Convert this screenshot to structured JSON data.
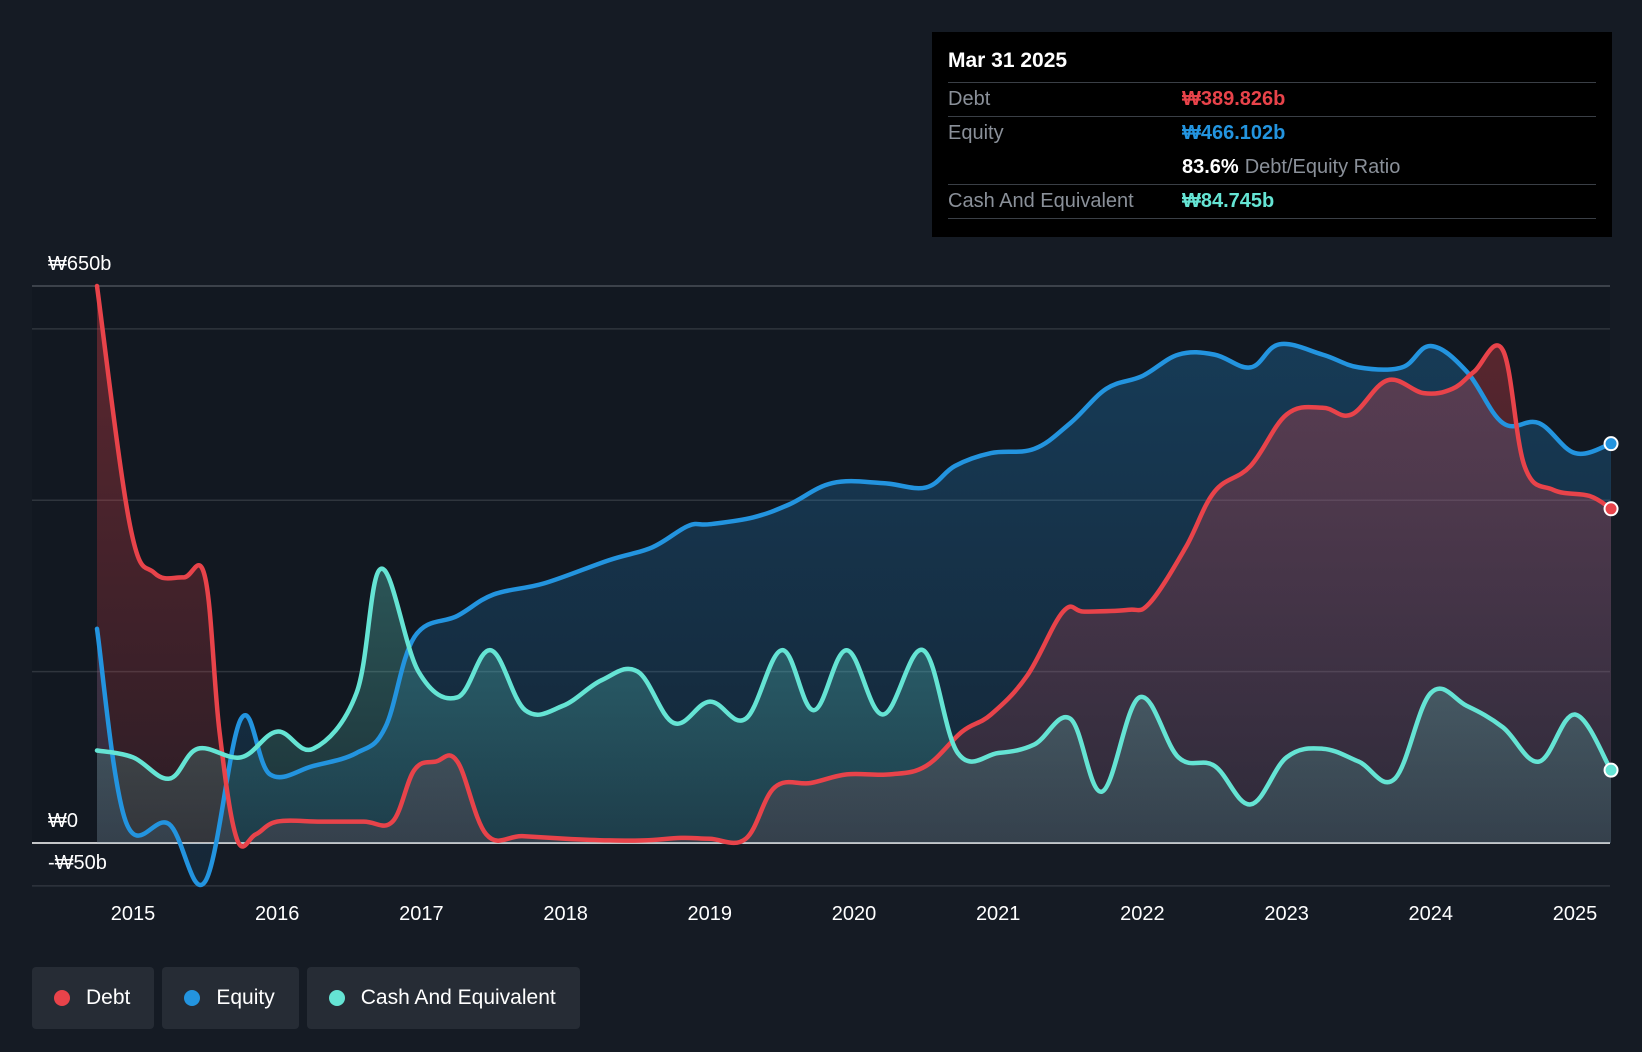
{
  "tooltip": {
    "date": "Mar 31 2025",
    "debt_label": "Debt",
    "debt_value": "₩389.826b",
    "equity_label": "Equity",
    "equity_value": "₩466.102b",
    "ratio_value": "83.6%",
    "ratio_label": "Debt/Equity Ratio",
    "cash_label": "Cash And Equivalent",
    "cash_value": "₩84.745b"
  },
  "legend": {
    "debt": "Debt",
    "equity": "Equity",
    "cash": "Cash And Equivalent"
  },
  "colors": {
    "debt": "#e8434a",
    "equity": "#2394df",
    "cash": "#65e4d4",
    "background": "#151b24"
  },
  "chart_data": {
    "type": "area",
    "title": "",
    "xlabel": "",
    "ylabel": "",
    "ylim": [
      -50,
      650
    ],
    "xlim": [
      2014.7,
      2025.25
    ],
    "y_tick_labels": [
      {
        "value": 650,
        "label": "₩650b"
      },
      {
        "value": 0,
        "label": "₩0"
      },
      {
        "value": -50,
        "label": "-₩50b"
      }
    ],
    "x_ticks": [
      2015,
      2016,
      2017,
      2018,
      2019,
      2020,
      2021,
      2022,
      2023,
      2024,
      2025
    ],
    "x_tick_labels": [
      "2015",
      "2016",
      "2017",
      "2018",
      "2019",
      "2020",
      "2021",
      "2022",
      "2023",
      "2024",
      "2025"
    ],
    "series": [
      {
        "name": "Debt",
        "key": "debt",
        "points": [
          [
            2014.75,
            650
          ],
          [
            2014.98,
            370
          ],
          [
            2015.15,
            315
          ],
          [
            2015.35,
            310
          ],
          [
            2015.5,
            310
          ],
          [
            2015.6,
            130
          ],
          [
            2015.72,
            5
          ],
          [
            2015.85,
            10
          ],
          [
            2016.0,
            25
          ],
          [
            2016.3,
            25
          ],
          [
            2016.6,
            25
          ],
          [
            2016.8,
            25
          ],
          [
            2016.95,
            85
          ],
          [
            2017.1,
            95
          ],
          [
            2017.25,
            95
          ],
          [
            2017.45,
            10
          ],
          [
            2017.7,
            8
          ],
          [
            2018.0,
            5
          ],
          [
            2018.3,
            3
          ],
          [
            2018.55,
            3
          ],
          [
            2018.8,
            6
          ],
          [
            2019.0,
            5
          ],
          [
            2019.25,
            5
          ],
          [
            2019.45,
            65
          ],
          [
            2019.7,
            70
          ],
          [
            2019.95,
            80
          ],
          [
            2020.25,
            80
          ],
          [
            2020.5,
            90
          ],
          [
            2020.75,
            130
          ],
          [
            2020.95,
            150
          ],
          [
            2021.2,
            195
          ],
          [
            2021.45,
            270
          ],
          [
            2021.6,
            270
          ],
          [
            2021.9,
            272
          ],
          [
            2022.05,
            280
          ],
          [
            2022.3,
            345
          ],
          [
            2022.5,
            410
          ],
          [
            2022.75,
            440
          ],
          [
            2023.0,
            500
          ],
          [
            2023.25,
            508
          ],
          [
            2023.45,
            500
          ],
          [
            2023.7,
            540
          ],
          [
            2023.95,
            525
          ],
          [
            2024.15,
            530
          ],
          [
            2024.3,
            550
          ],
          [
            2024.5,
            575
          ],
          [
            2024.65,
            440
          ],
          [
            2024.85,
            412
          ],
          [
            2025.1,
            405
          ],
          [
            2025.25,
            390
          ]
        ]
      },
      {
        "name": "Equity",
        "key": "equity",
        "points": [
          [
            2014.75,
            250
          ],
          [
            2014.95,
            25
          ],
          [
            2015.25,
            22
          ],
          [
            2015.5,
            -45
          ],
          [
            2015.75,
            145
          ],
          [
            2015.95,
            80
          ],
          [
            2016.25,
            90
          ],
          [
            2016.55,
            105
          ],
          [
            2016.75,
            135
          ],
          [
            2016.95,
            240
          ],
          [
            2017.25,
            265
          ],
          [
            2017.5,
            290
          ],
          [
            2017.85,
            303
          ],
          [
            2018.3,
            330
          ],
          [
            2018.6,
            345
          ],
          [
            2018.85,
            370
          ],
          [
            2019.0,
            372
          ],
          [
            2019.3,
            380
          ],
          [
            2019.55,
            395
          ],
          [
            2019.85,
            420
          ],
          [
            2020.2,
            420
          ],
          [
            2020.5,
            415
          ],
          [
            2020.7,
            440
          ],
          [
            2020.95,
            455
          ],
          [
            2021.25,
            460
          ],
          [
            2021.5,
            490
          ],
          [
            2021.75,
            530
          ],
          [
            2022.0,
            545
          ],
          [
            2022.25,
            570
          ],
          [
            2022.5,
            570
          ],
          [
            2022.75,
            555
          ],
          [
            2022.95,
            582
          ],
          [
            2023.25,
            570
          ],
          [
            2023.5,
            555
          ],
          [
            2023.8,
            555
          ],
          [
            2024.0,
            580
          ],
          [
            2024.25,
            550
          ],
          [
            2024.5,
            490
          ],
          [
            2024.75,
            490
          ],
          [
            2025.0,
            455
          ],
          [
            2025.25,
            466
          ]
        ]
      },
      {
        "name": "Cash And Equivalent",
        "key": "cash",
        "points": [
          [
            2014.75,
            108
          ],
          [
            2015.0,
            100
          ],
          [
            2015.25,
            75
          ],
          [
            2015.45,
            110
          ],
          [
            2015.75,
            100
          ],
          [
            2016.0,
            130
          ],
          [
            2016.25,
            110
          ],
          [
            2016.55,
            175
          ],
          [
            2016.72,
            320
          ],
          [
            2016.98,
            200
          ],
          [
            2017.25,
            170
          ],
          [
            2017.48,
            225
          ],
          [
            2017.72,
            155
          ],
          [
            2017.98,
            160
          ],
          [
            2018.25,
            190
          ],
          [
            2018.5,
            200
          ],
          [
            2018.75,
            140
          ],
          [
            2019.0,
            165
          ],
          [
            2019.25,
            145
          ],
          [
            2019.5,
            225
          ],
          [
            2019.72,
            155
          ],
          [
            2019.95,
            225
          ],
          [
            2020.2,
            150
          ],
          [
            2020.48,
            225
          ],
          [
            2020.72,
            105
          ],
          [
            2021.0,
            105
          ],
          [
            2021.25,
            115
          ],
          [
            2021.5,
            145
          ],
          [
            2021.72,
            60
          ],
          [
            2021.98,
            170
          ],
          [
            2022.25,
            100
          ],
          [
            2022.5,
            90
          ],
          [
            2022.75,
            45
          ],
          [
            2023.0,
            100
          ],
          [
            2023.25,
            110
          ],
          [
            2023.5,
            95
          ],
          [
            2023.75,
            75
          ],
          [
            2024.0,
            175
          ],
          [
            2024.25,
            160
          ],
          [
            2024.5,
            135
          ],
          [
            2024.75,
            95
          ],
          [
            2025.0,
            150
          ],
          [
            2025.25,
            85
          ]
        ]
      }
    ],
    "tooltip_values": {
      "debt": 389.826,
      "equity": 466.102,
      "cash": 84.745
    }
  }
}
